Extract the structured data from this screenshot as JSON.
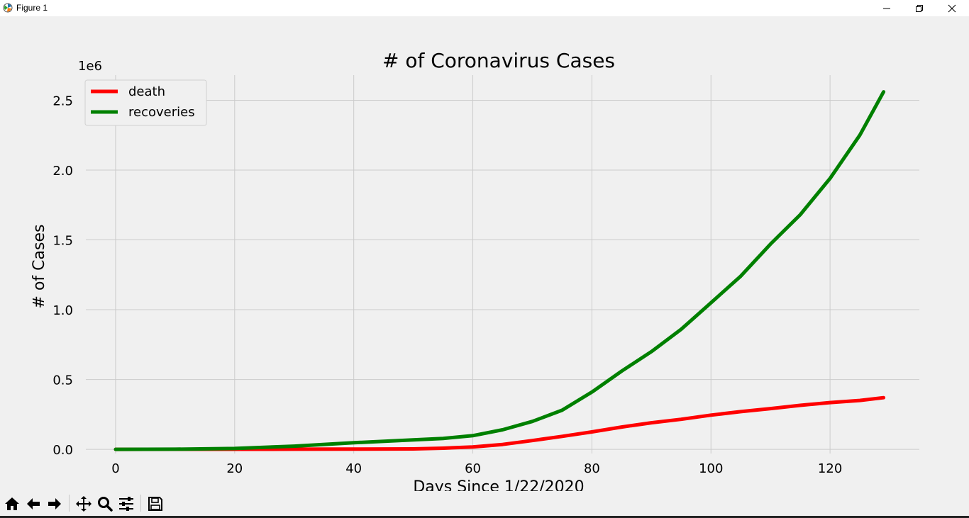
{
  "window": {
    "title": "Figure 1",
    "icons": {
      "app": "matplotlib-icon",
      "minimize": "minimize-icon",
      "maximize": "restore-icon",
      "close": "close-icon"
    }
  },
  "toolbar": {
    "buttons": [
      "home-icon",
      "back-arrow-icon",
      "forward-arrow-icon",
      "pan-icon",
      "zoom-icon",
      "configure-subplots-icon",
      "save-icon"
    ]
  },
  "chart_data": {
    "type": "line",
    "title": "# of Coronavirus Cases",
    "xlabel": "Days Since 1/22/2020",
    "ylabel": "# of Cases",
    "y_offset_label": "1e6",
    "xlim": [
      -5,
      135
    ],
    "ylim": [
      -0.03,
      2.68
    ],
    "x_ticks": [
      0,
      20,
      40,
      60,
      80,
      100,
      120
    ],
    "x_tick_labels": [
      "0",
      "20",
      "40",
      "60",
      "80",
      "100",
      "120"
    ],
    "y_ticks": [
      0,
      0.5,
      1.0,
      1.5,
      2.0,
      2.5
    ],
    "y_tick_labels": [
      "0.0",
      "0.5",
      "1.0",
      "1.5",
      "2.0",
      "2.5"
    ],
    "grid": true,
    "legend_position": "top-left",
    "x": [
      0,
      10,
      20,
      30,
      40,
      50,
      55,
      60,
      65,
      70,
      75,
      80,
      85,
      90,
      95,
      100,
      105,
      110,
      115,
      120,
      125,
      129
    ],
    "series": [
      {
        "name": "death",
        "color": "#ff0000",
        "values": [
          1e-05,
          0.0003,
          0.0006,
          0.0009,
          0.0016,
          0.003,
          0.008,
          0.017,
          0.035,
          0.063,
          0.093,
          0.125,
          0.16,
          0.19,
          0.215,
          0.245,
          0.27,
          0.292,
          0.315,
          0.335,
          0.35,
          0.37
        ]
      },
      {
        "name": "recoveries",
        "color": "#008000",
        "values": [
          3e-05,
          0.0008,
          0.006,
          0.023,
          0.047,
          0.068,
          0.078,
          0.098,
          0.14,
          0.2,
          0.28,
          0.41,
          0.56,
          0.7,
          0.86,
          1.05,
          1.24,
          1.47,
          1.68,
          1.94,
          2.25,
          2.56
        ]
      }
    ]
  }
}
